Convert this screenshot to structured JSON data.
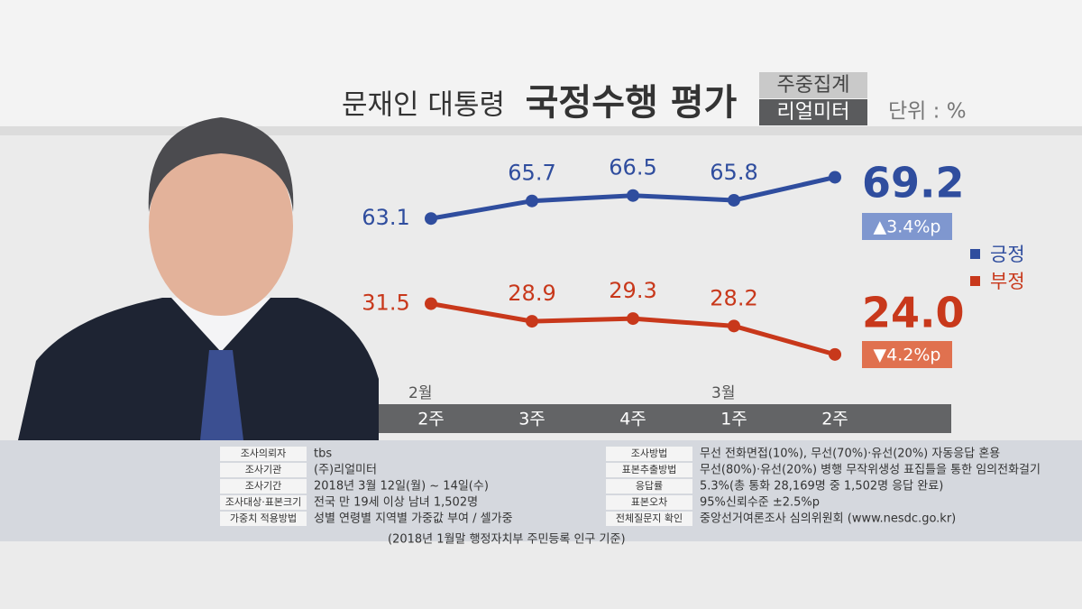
{
  "chart_data": {
    "type": "line",
    "title": "문재인 대통령",
    "subtitle": "국정수행 평가",
    "badges": [
      "주중집계",
      "리얼미터"
    ],
    "unit": "단위 : %",
    "categories": [
      "2주",
      "3주",
      "4주",
      "1주",
      "2주"
    ],
    "months": [
      "2월",
      null,
      null,
      "3월",
      null
    ],
    "series": [
      {
        "name": "긍정",
        "color": "#2f4d9e",
        "values": [
          63.1,
          65.7,
          66.5,
          65.8,
          69.2
        ],
        "change": "▲3.4%p",
        "change_color": "#7f97cf"
      },
      {
        "name": "부정",
        "color": "#c8381b",
        "values": [
          31.5,
          28.9,
          29.3,
          28.2,
          24.0
        ],
        "value_labels": [
          "31.5",
          "28.9",
          "29.3",
          "28.2",
          "24.0"
        ],
        "change": "▼4.2%p",
        "change_color": "#e0714f"
      }
    ]
  },
  "info": {
    "left": [
      {
        "label": "조사의뢰자",
        "value": "tbs"
      },
      {
        "label": "조사기관",
        "value": "(주)리얼미터"
      },
      {
        "label": "조사기간",
        "value": "2018년 3월 12일(월) ~ 14일(수)"
      },
      {
        "label": "조사대상·표본크기",
        "value": "전국 만 19세 이상 남녀 1,502명"
      },
      {
        "label": "가중치 적용방법",
        "value": "성별 연령별 지역별 가중값 부여 / 셀가중"
      }
    ],
    "left_note": "(2018년 1월말 행정자치부 주민등록 인구 기준)",
    "right": [
      {
        "label": "조사방법",
        "value": "무선 전화면접(10%), 무선(70%)·유선(20%) 자동응답 혼용"
      },
      {
        "label": "표본추출방법",
        "value": "무선(80%)·유선(20%) 병행 무작위생성 표집틀을 통한 임의전화걸기"
      },
      {
        "label": "응답률",
        "value": "5.3%(총 통화 28,169명 중 1,502명 응답 완료)"
      },
      {
        "label": "표본오차",
        "value": "95%신뢰수준 ±2.5%p"
      },
      {
        "label": "전체질문지 확인",
        "value": "중앙선거여론조사 심의위원회 (www.nesdc.go.kr)"
      }
    ]
  }
}
